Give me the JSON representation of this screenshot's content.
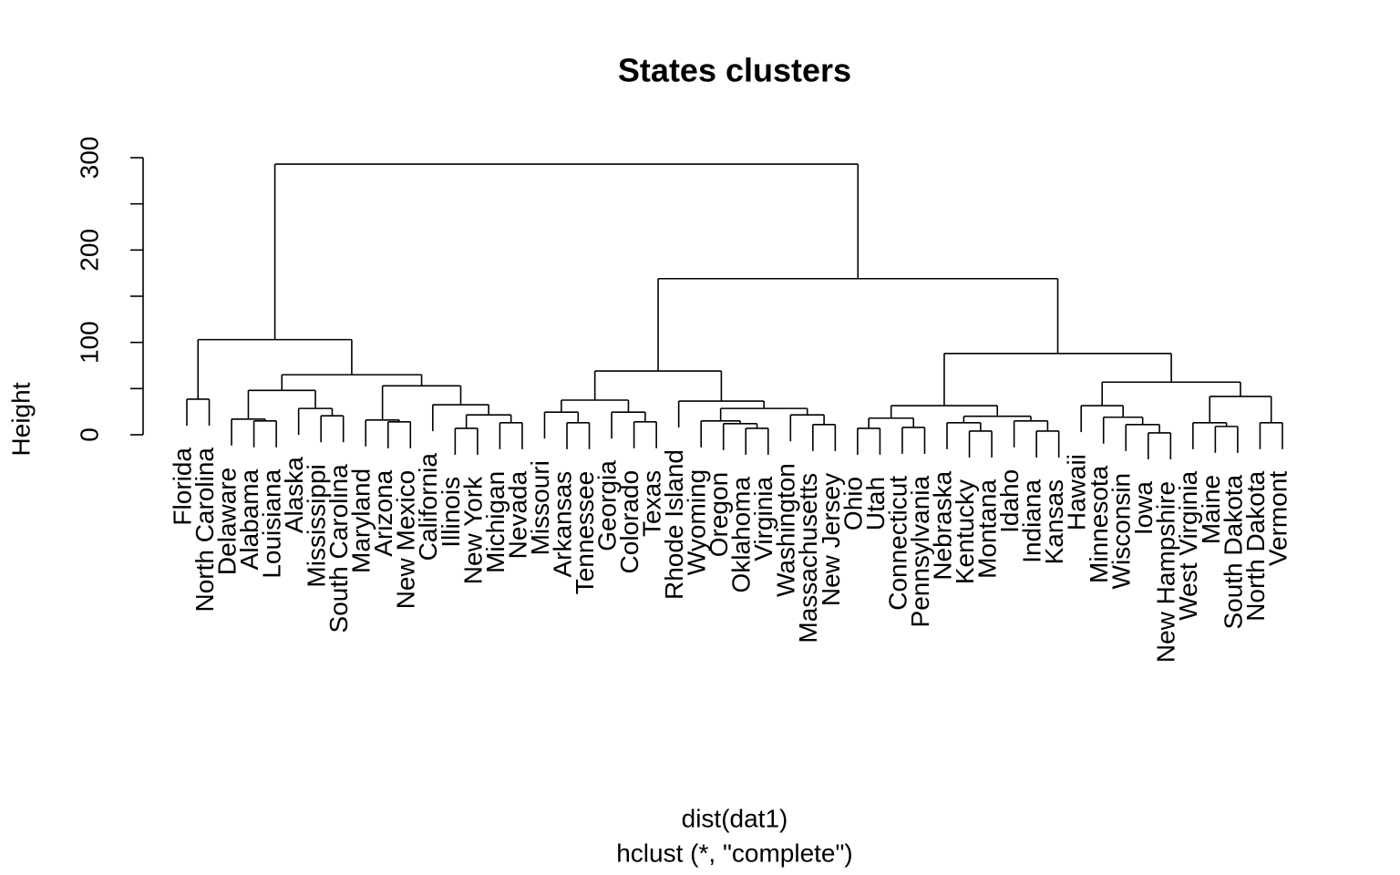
{
  "chart_data": {
    "type": "dendrogram",
    "title": "States clusters",
    "xlabel": "dist(dat1)",
    "subtitle": "hclust (*, \"complete\")",
    "ylabel": "Height",
    "ylim": [
      0,
      300
    ],
    "yticks": [
      0,
      100,
      200,
      300
    ],
    "yminor": [
      50,
      150,
      250
    ],
    "color": "#000000",
    "tree": {
      "height": 293,
      "children": [
        {
          "height": 103,
          "children": [
            {
              "height": 38.5,
              "children": [
                "Florida",
                "North Carolina"
              ]
            },
            {
              "height": 65,
              "children": [
                {
                  "height": 48,
                  "children": [
                    {
                      "height": 17,
                      "children": [
                        "Delaware",
                        {
                          "height": 15,
                          "children": [
                            "Alabama",
                            "Louisiana"
                          ]
                        }
                      ]
                    },
                    {
                      "height": 28.5,
                      "children": [
                        "Alaska",
                        {
                          "height": 20.5,
                          "children": [
                            "Mississippi",
                            "South Carolina"
                          ]
                        }
                      ]
                    }
                  ]
                },
                {
                  "height": 53,
                  "children": [
                    {
                      "height": 16,
                      "children": [
                        "Maryland",
                        {
                          "height": 14,
                          "children": [
                            "Arizona",
                            "New Mexico"
                          ]
                        }
                      ]
                    },
                    {
                      "height": 32.5,
                      "children": [
                        "California",
                        {
                          "height": 21.5,
                          "children": [
                            {
                              "height": 7,
                              "children": [
                                "Illinois",
                                "New York"
                              ]
                            },
                            {
                              "height": 13,
                              "children": [
                                "Michigan",
                                "Nevada"
                              ]
                            }
                          ]
                        }
                      ]
                    }
                  ]
                }
              ]
            }
          ]
        },
        {
          "height": 169,
          "children": [
            {
              "height": 69,
              "children": [
                {
                  "height": 37.5,
                  "children": [
                    {
                      "height": 24.5,
                      "children": [
                        "Missouri",
                        {
                          "height": 13,
                          "children": [
                            "Arkansas",
                            "Tennessee"
                          ]
                        }
                      ]
                    },
                    {
                      "height": 24.5,
                      "children": [
                        "Georgia",
                        {
                          "height": 14,
                          "children": [
                            "Colorado",
                            "Texas"
                          ]
                        }
                      ]
                    }
                  ]
                },
                {
                  "height": 36.5,
                  "children": [
                    "Rhode Island",
                    {
                      "height": 28.5,
                      "children": [
                        {
                          "height": 15,
                          "children": [
                            "Wyoming",
                            {
                              "height": 12,
                              "children": [
                                "Oregon",
                                {
                                  "height": 7,
                                  "children": [
                                    "Oklahoma",
                                    "Virginia"
                                  ]
                                }
                              ]
                            }
                          ]
                        },
                        {
                          "height": 21.5,
                          "children": [
                            "Washington",
                            {
                              "height": 11,
                              "children": [
                                "Massachusetts",
                                "New Jersey"
                              ]
                            }
                          ]
                        }
                      ]
                    }
                  ]
                }
              ]
            },
            {
              "height": 88,
              "children": [
                {
                  "height": 31.5,
                  "children": [
                    {
                      "height": 18,
                      "children": [
                        {
                          "height": 7,
                          "children": [
                            "Ohio",
                            "Utah"
                          ]
                        },
                        {
                          "height": 8,
                          "children": [
                            "Connecticut",
                            "Pennsylvania"
                          ]
                        }
                      ]
                    },
                    {
                      "height": 20,
                      "children": [
                        {
                          "height": 13,
                          "children": [
                            "Nebraska",
                            {
                              "height": 4,
                              "children": [
                                "Kentucky",
                                "Montana"
                              ]
                            }
                          ]
                        },
                        {
                          "height": 15,
                          "children": [
                            "Idaho",
                            {
                              "height": 4,
                              "children": [
                                "Indiana",
                                "Kansas"
                              ]
                            }
                          ]
                        }
                      ]
                    }
                  ]
                },
                {
                  "height": 57,
                  "children": [
                    {
                      "height": 31.5,
                      "children": [
                        "Hawaii",
                        {
                          "height": 19,
                          "children": [
                            "Minnesota",
                            {
                              "height": 11,
                              "children": [
                                "Wisconsin",
                                {
                                  "height": 2,
                                  "children": [
                                    "Iowa",
                                    "New Hampshire"
                                  ]
                                }
                              ]
                            }
                          ]
                        }
                      ]
                    },
                    {
                      "height": 41.5,
                      "children": [
                        {
                          "height": 13,
                          "children": [
                            "West Virginia",
                            {
                              "height": 9,
                              "children": [
                                "Maine",
                                "South Dakota"
                              ]
                            }
                          ]
                        },
                        {
                          "height": 13,
                          "children": [
                            "North Dakota",
                            "Vermont"
                          ]
                        }
                      ]
                    }
                  ]
                }
              ]
            }
          ]
        }
      ]
    }
  }
}
